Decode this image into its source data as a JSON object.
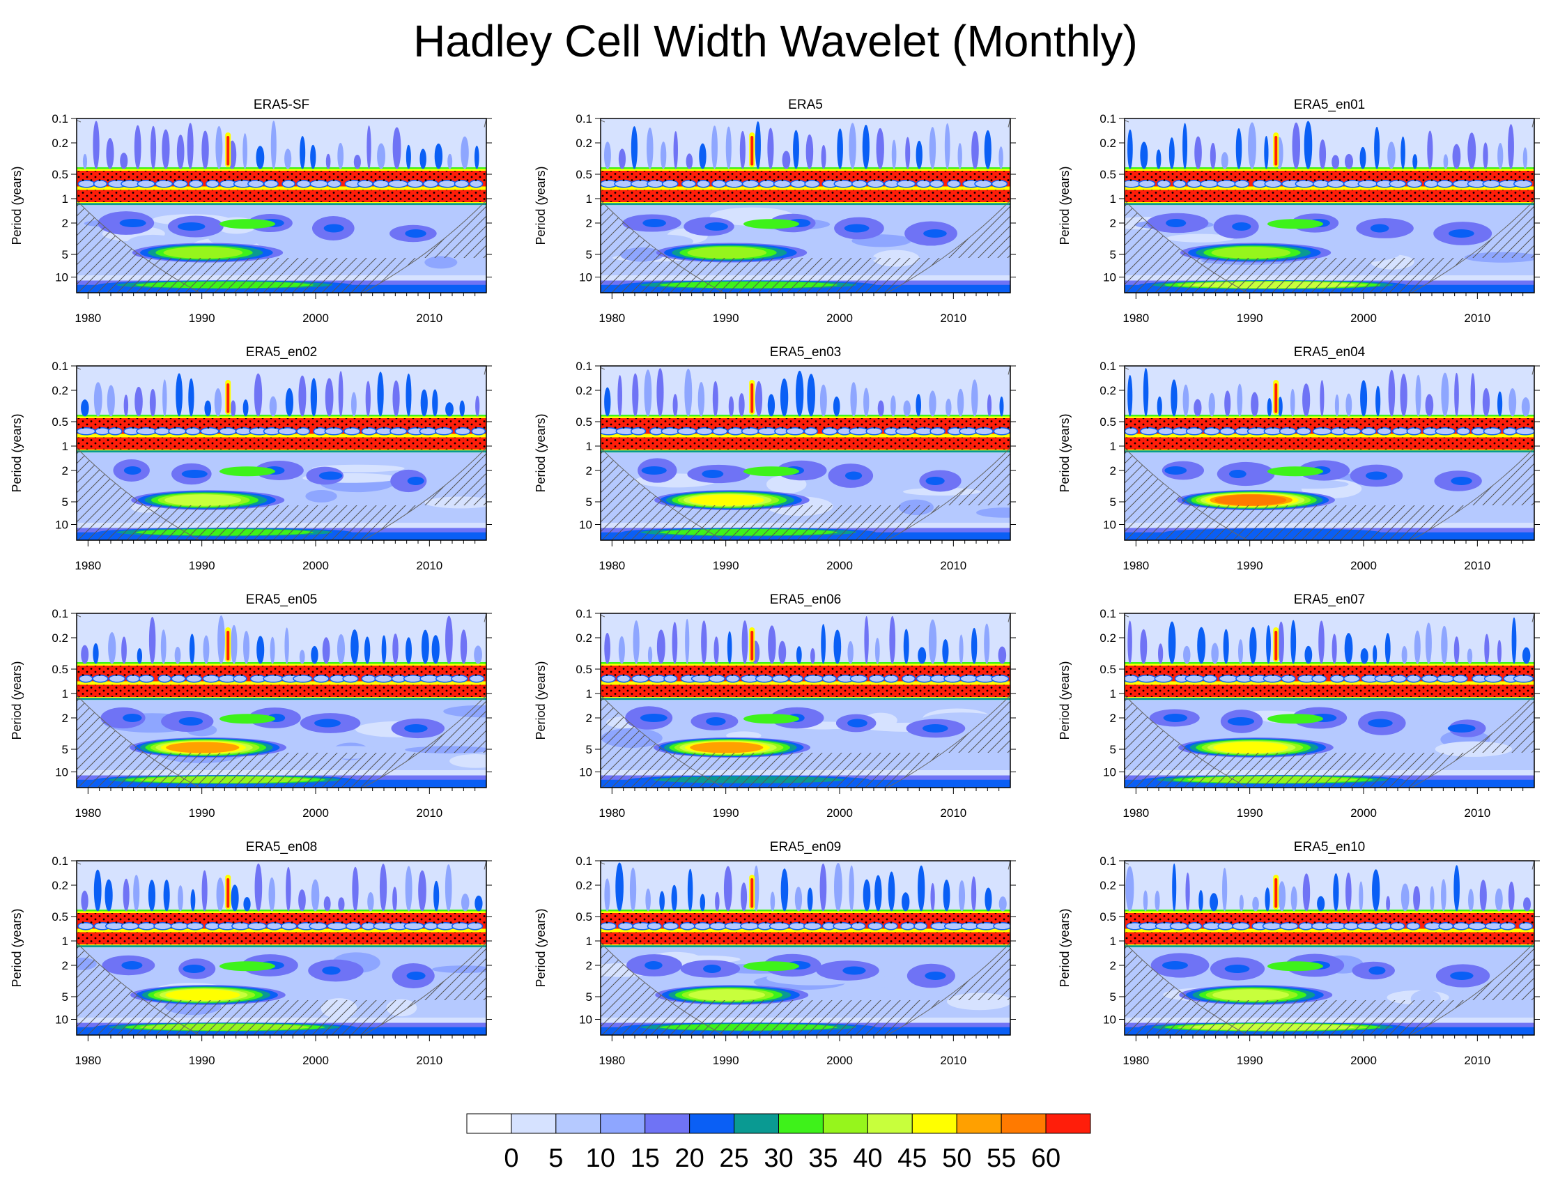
{
  "title": "Hadley Cell Width Wavelet (Monthly)",
  "chart_data": {
    "type": "heatmap",
    "title": "Hadley Cell Width Wavelet (Monthly)",
    "xlabel": "",
    "ylabel": "Period (years)",
    "xlim": [
      1979,
      2015
    ],
    "x_ticks": [
      "1980",
      "1990",
      "2000",
      "2010"
    ],
    "y_ticks": [
      "0.1",
      "0.2",
      "0.5",
      "1",
      "2",
      "5",
      "10"
    ],
    "colorbar": {
      "levels": [
        "0",
        "5",
        "10",
        "15",
        "20",
        "25",
        "30",
        "35",
        "40",
        "45",
        "50",
        "55",
        "60"
      ],
      "colors": [
        "#ffffff",
        "#d6e2ff",
        "#b5c9ff",
        "#8ea6ff",
        "#6f73f5",
        "#0a5ff5",
        "#0a9a92",
        "#3ef21a",
        "#96f51c",
        "#c8ff3c",
        "#ffff00",
        "#ffa000",
        "#ff7a00",
        "#ff1e0a"
      ]
    },
    "panels": [
      {
        "name": "ERA5-SF",
        "annual_peak": 60,
        "mid_peak": 40,
        "decadal_peak": 35
      },
      {
        "name": "ERA5",
        "annual_peak": 60,
        "mid_peak": 40,
        "decadal_peak": 35
      },
      {
        "name": "ERA5_en01",
        "annual_peak": 60,
        "mid_peak": 40,
        "decadal_peak": 45
      },
      {
        "name": "ERA5_en02",
        "annual_peak": 60,
        "mid_peak": 45,
        "decadal_peak": 35
      },
      {
        "name": "ERA5_en03",
        "annual_peak": 60,
        "mid_peak": 50,
        "decadal_peak": 35
      },
      {
        "name": "ERA5_en04",
        "annual_peak": 60,
        "mid_peak": 60,
        "decadal_peak": 25
      },
      {
        "name": "ERA5_en05",
        "annual_peak": 60,
        "mid_peak": 55,
        "decadal_peak": 40
      },
      {
        "name": "ERA5_en06",
        "annual_peak": 60,
        "mid_peak": 55,
        "decadal_peak": 30
      },
      {
        "name": "ERA5_en07",
        "annual_peak": 60,
        "mid_peak": 50,
        "decadal_peak": 40
      },
      {
        "name": "ERA5_en08",
        "annual_peak": 60,
        "mid_peak": 50,
        "decadal_peak": 40
      },
      {
        "name": "ERA5_en09",
        "annual_peak": 60,
        "mid_peak": 45,
        "decadal_peak": 35
      },
      {
        "name": "ERA5_en10",
        "annual_peak": 60,
        "mid_peak": 45,
        "decadal_peak": 45
      }
    ]
  }
}
